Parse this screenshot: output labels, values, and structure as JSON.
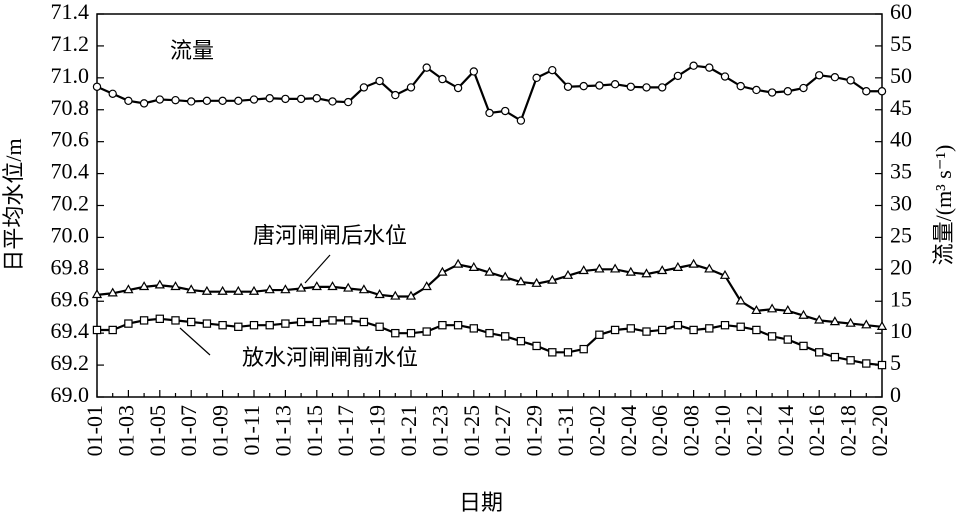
{
  "chart_data": {
    "type": "line",
    "categories": [
      "01-01",
      null,
      "01-03",
      null,
      "01-05",
      null,
      "01-07",
      null,
      "01-09",
      null,
      "01-11",
      null,
      "01-13",
      null,
      "01-15",
      null,
      "01-17",
      null,
      "01-19",
      null,
      "01-21",
      null,
      "01-23",
      null,
      "01-25",
      null,
      "01-27",
      null,
      "01-29",
      null,
      "01-31",
      null,
      "02-02",
      null,
      "02-04",
      null,
      "02-06",
      null,
      "02-08",
      null,
      "02-10",
      null,
      "02-12",
      null,
      "02-14",
      null,
      "02-16",
      null,
      "02-18",
      null,
      "02-20"
    ],
    "series": [
      {
        "name": "流量",
        "color": "#000000",
        "marker": "circle",
        "axis": "y2",
        "values": [
          48.6,
          47.5,
          46.4,
          46.0,
          46.6,
          46.5,
          46.3,
          46.4,
          46.4,
          46.4,
          46.6,
          46.8,
          46.7,
          46.7,
          46.8,
          46.3,
          46.2,
          48.5,
          49.5,
          47.3,
          48.5,
          51.6,
          49.8,
          48.4,
          51.0,
          44.5,
          44.8,
          43.3,
          50.0,
          51.2,
          48.6,
          48.7,
          48.8,
          49.0,
          48.6,
          48.5,
          48.5,
          50.3,
          51.9,
          51.6,
          50.2,
          48.7,
          48.1,
          47.7,
          47.9,
          48.4,
          50.4,
          50.1,
          49.6,
          47.9,
          47.9
        ]
      },
      {
        "name": "唐河闸闸后水位",
        "color": "#000000",
        "marker": "triangle",
        "values": [
          69.64,
          69.65,
          69.67,
          69.69,
          69.7,
          69.69,
          69.67,
          69.66,
          69.66,
          69.66,
          69.66,
          69.67,
          69.67,
          69.68,
          69.69,
          69.69,
          69.68,
          69.67,
          69.64,
          69.63,
          69.63,
          69.69,
          69.78,
          69.83,
          69.81,
          69.78,
          69.75,
          69.72,
          69.71,
          69.73,
          69.76,
          69.79,
          69.8,
          69.8,
          69.78,
          69.77,
          69.79,
          69.81,
          69.83,
          69.8,
          69.76,
          69.6,
          69.54,
          69.55,
          69.54,
          69.51,
          69.48,
          69.47,
          69.46,
          69.45,
          69.44
        ]
      },
      {
        "name": "放水河闸闸前水位",
        "color": "#000000",
        "marker": "square",
        "values": [
          69.42,
          69.42,
          69.46,
          69.48,
          69.49,
          69.48,
          69.47,
          69.46,
          69.45,
          69.44,
          69.45,
          69.45,
          69.46,
          69.47,
          69.47,
          69.48,
          69.48,
          69.47,
          69.44,
          69.4,
          69.4,
          69.41,
          69.45,
          69.45,
          69.43,
          69.4,
          69.38,
          69.35,
          69.32,
          69.28,
          69.28,
          69.3,
          69.39,
          69.42,
          69.43,
          69.41,
          69.42,
          69.45,
          69.42,
          69.43,
          69.45,
          69.44,
          69.42,
          69.38,
          69.36,
          69.32,
          69.28,
          69.25,
          69.23,
          69.21,
          69.2
        ]
      }
    ],
    "xlabel": "日期",
    "ylabel": "日平均水位/m",
    "y2label": "流量/(m³ s⁻¹)",
    "ylim": [
      69.0,
      71.4
    ],
    "yticks": [
      {
        "value": 69.0,
        "label": "69.0"
      },
      69.2,
      69.4,
      69.6,
      69.8,
      {
        "value": 70.0,
        "label": "70.0"
      },
      70.2,
      70.4,
      70.6,
      70.8,
      {
        "value": 71.0,
        "label": "71.0"
      },
      71.2,
      71.4
    ],
    "y2lim": [
      0,
      60
    ],
    "y2ticks": [
      0,
      5,
      10,
      15,
      20,
      25,
      30,
      35,
      40,
      45,
      50,
      55,
      60
    ],
    "grid": false
  }
}
